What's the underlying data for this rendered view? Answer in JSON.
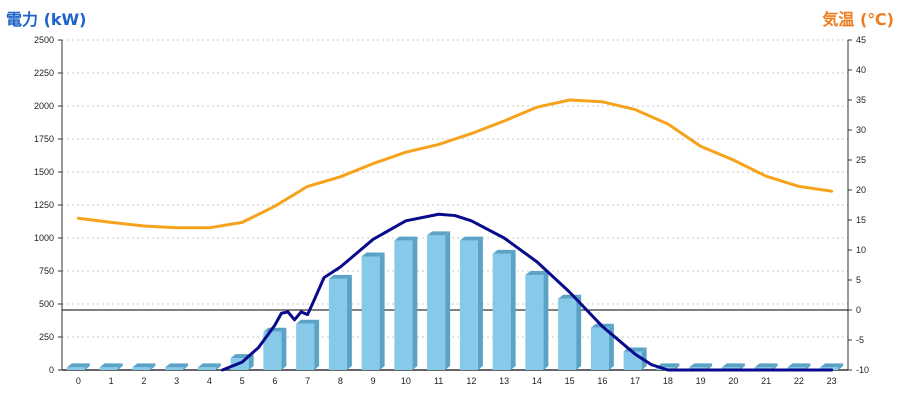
{
  "chart_data": {
    "type": "bar",
    "y_left_label": "電力 (kW)",
    "y_right_label": "気温 (℃)",
    "y_left_range": [
      0,
      2500
    ],
    "y_left_ticks": [
      "0",
      "250",
      "500",
      "750",
      "1000",
      "1250",
      "1500",
      "1750",
      "2000",
      "2250",
      "2500"
    ],
    "y_right_range": [
      -10,
      45
    ],
    "y_right_ticks": [
      "-10",
      "-5",
      "0",
      "5",
      "10",
      "15",
      "20",
      "25",
      "30",
      "35",
      "40",
      "45"
    ],
    "categories": [
      "0",
      "1",
      "2",
      "3",
      "4",
      "5",
      "6",
      "7",
      "8",
      "9",
      "10",
      "11",
      "12",
      "13",
      "14",
      "15",
      "16",
      "17",
      "18",
      "19",
      "20",
      "21",
      "22",
      "23"
    ],
    "grid": true,
    "series": [
      {
        "type": "bar",
        "axis": "left",
        "color": "#87c9e8",
        "values": [
          20,
          20,
          20,
          20,
          20,
          90,
          290,
          350,
          690,
          860,
          980,
          1020,
          980,
          880,
          720,
          540,
          320,
          140,
          20,
          20,
          20,
          20,
          20,
          20
        ]
      },
      {
        "type": "line",
        "axis": "left",
        "color": "#0a0a8c",
        "x": [
          4.4,
          5.0,
          5.5,
          6.0,
          6.2,
          6.4,
          6.6,
          6.8,
          7.0,
          7.2,
          7.5,
          8.0,
          9.0,
          10.0,
          11.0,
          11.5,
          12.0,
          13.0,
          14.0,
          15.0,
          16.0,
          17.0,
          17.5,
          18.0,
          23.0
        ],
        "values": [
          0,
          60,
          170,
          340,
          430,
          440,
          380,
          440,
          420,
          530,
          700,
          780,
          990,
          1130,
          1180,
          1170,
          1130,
          1000,
          820,
          590,
          330,
          120,
          40,
          0,
          0
        ]
      },
      {
        "type": "line",
        "axis": "right",
        "color": "#f7a21b",
        "x": [
          0,
          1,
          2,
          3,
          4,
          5,
          6,
          7,
          8,
          9,
          10,
          11,
          12,
          13,
          14,
          15,
          16,
          17,
          18,
          19,
          20,
          21,
          22,
          23
        ],
        "values": [
          15.3,
          14.6,
          14.0,
          13.7,
          13.7,
          14.6,
          17.3,
          20.6,
          22.2,
          24.4,
          26.3,
          27.6,
          29.4,
          31.5,
          33.8,
          35.0,
          34.7,
          33.4,
          31.0,
          27.3,
          25.0,
          22.3,
          20.6,
          19.8
        ]
      }
    ],
    "threshold_right": 0
  }
}
